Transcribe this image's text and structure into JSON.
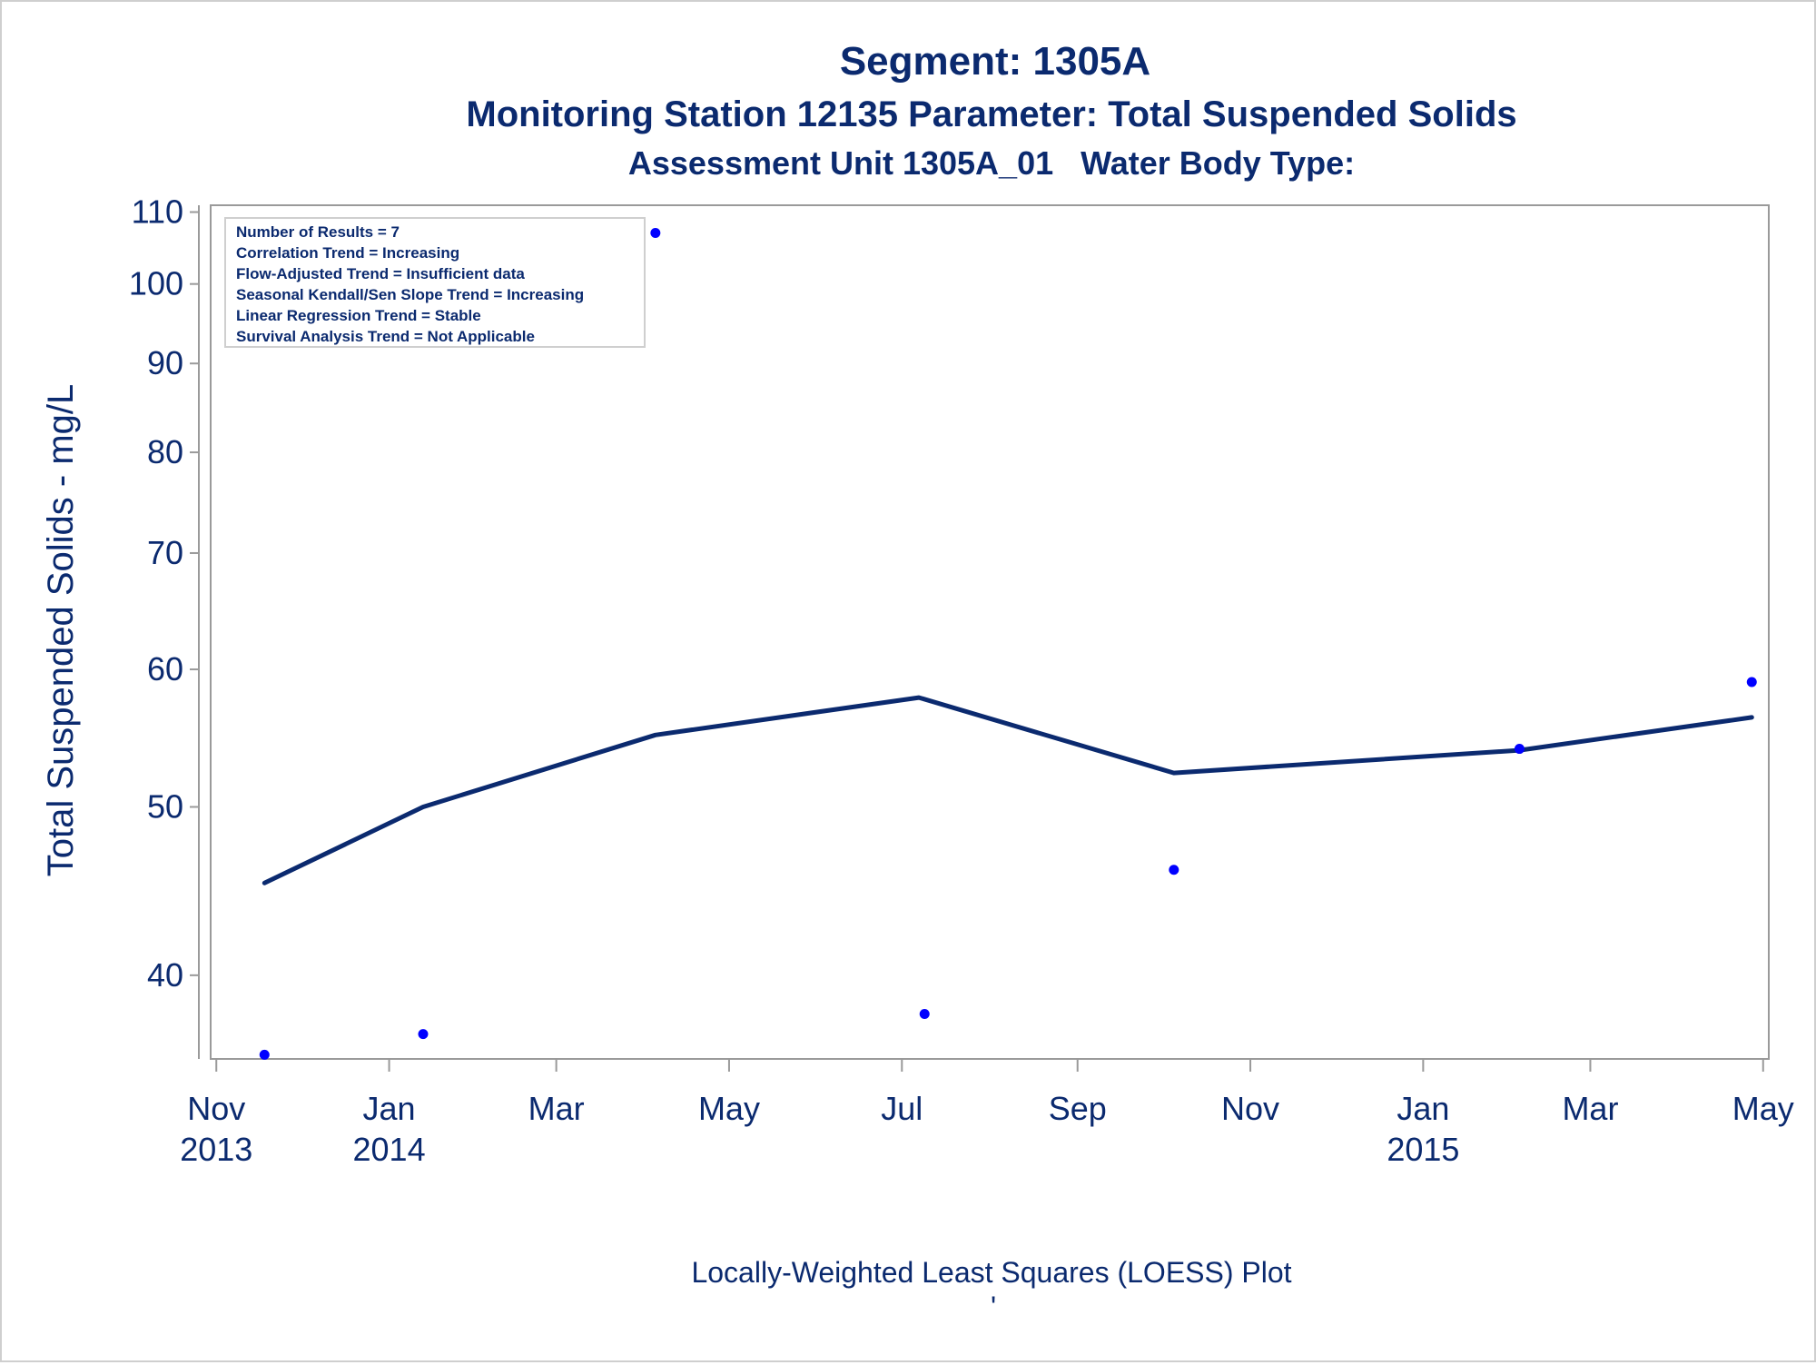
{
  "titles": {
    "line1": "Segment: 1305A",
    "line2": "Monitoring Station 12135 Parameter: Total Suspended Solids",
    "line3": "Assessment Unit 1305A_01   Water Body Type:"
  },
  "stats_box": [
    "Number of Results = 7",
    "Correlation Trend = Increasing",
    "Flow-Adjusted Trend = Insufficient data",
    "Seasonal Kendall/Sen Slope Trend = Increasing",
    "Linear Regression Trend = Stable",
    "Survival Analysis Trend = Not Applicable"
  ],
  "footnote": "Locally-Weighted Least Squares (LOESS) Plot",
  "footnote_mark": "'",
  "colors": {
    "text": "#0b2a6f",
    "points": "#0000ff",
    "loess": "#0b2a6f",
    "frame": "#9a9a9a"
  },
  "chart_data": {
    "type": "scatter",
    "title": "Segment: 1305A",
    "xlabel": "",
    "ylabel": "Total Suspended Solids - mg/L",
    "y_scale": "log",
    "ylim": [
      35.8,
      111
    ],
    "xlim": [
      "2013-10-30",
      "2015-05-03"
    ],
    "grid": false,
    "y_ticks": [
      40,
      50,
      60,
      70,
      80,
      90,
      100,
      110
    ],
    "x_ticks": [
      {
        "date": "2013-11-01",
        "label": "Nov",
        "year": "2013"
      },
      {
        "date": "2014-01-01",
        "label": "Jan",
        "year": "2014"
      },
      {
        "date": "2014-03-01",
        "label": "Mar",
        "year": ""
      },
      {
        "date": "2014-05-01",
        "label": "May",
        "year": ""
      },
      {
        "date": "2014-07-01",
        "label": "Jul",
        "year": ""
      },
      {
        "date": "2014-09-01",
        "label": "Sep",
        "year": ""
      },
      {
        "date": "2014-11-01",
        "label": "Nov",
        "year": ""
      },
      {
        "date": "2015-01-01",
        "label": "Jan",
        "year": "2015"
      },
      {
        "date": "2015-03-01",
        "label": "Mar",
        "year": ""
      },
      {
        "date": "2015-05-01",
        "label": "May",
        "year": ""
      }
    ],
    "series": [
      {
        "type": "scatter",
        "points": [
          {
            "x": "2013-11-18",
            "y": 36
          },
          {
            "x": "2014-01-13",
            "y": 37
          },
          {
            "x": "2014-04-05",
            "y": 107
          },
          {
            "x": "2014-07-09",
            "y": 38
          },
          {
            "x": "2014-10-05",
            "y": 46
          },
          {
            "x": "2015-02-04",
            "y": 54
          },
          {
            "x": "2015-04-27",
            "y": 59
          }
        ]
      },
      {
        "type": "line",
        "points": [
          {
            "x": "2013-11-18",
            "y": 45.2
          },
          {
            "x": "2014-01-13",
            "y": 50.0
          },
          {
            "x": "2014-04-05",
            "y": 55.0
          },
          {
            "x": "2014-07-07",
            "y": 57.8
          },
          {
            "x": "2014-10-05",
            "y": 52.3
          },
          {
            "x": "2015-02-04",
            "y": 53.9
          },
          {
            "x": "2015-04-27",
            "y": 56.3
          }
        ]
      }
    ]
  }
}
